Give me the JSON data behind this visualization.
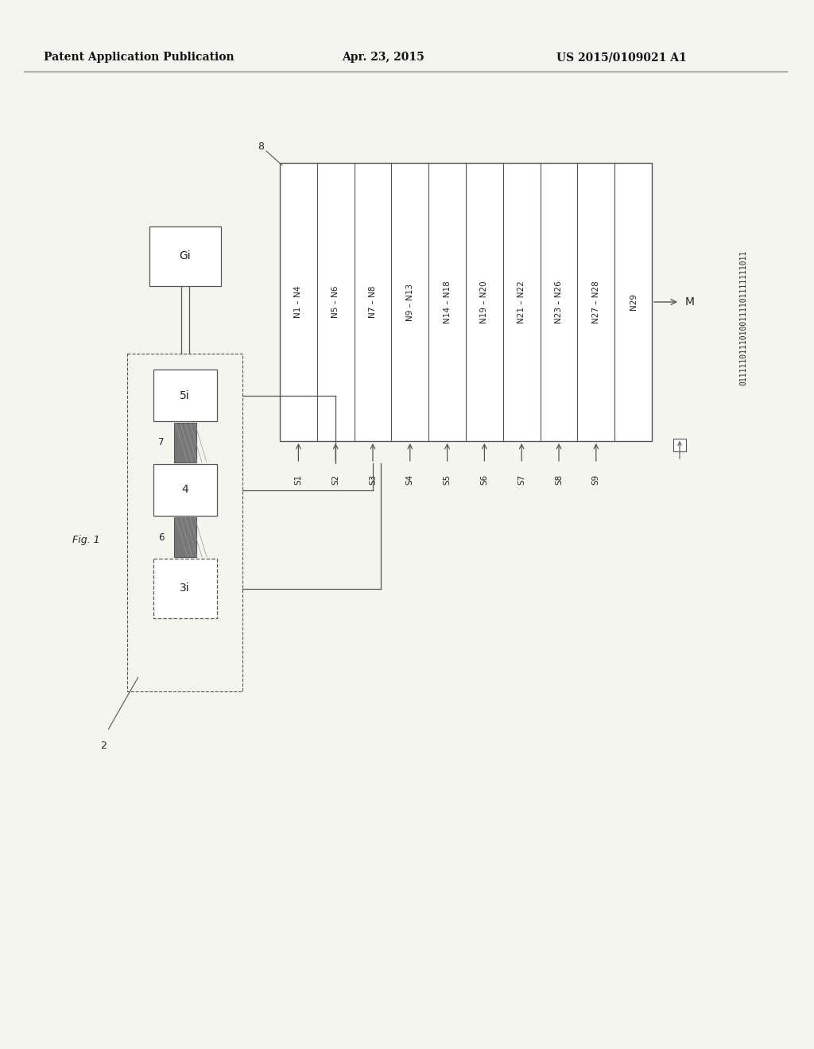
{
  "title_left": "Patent Application Publication",
  "title_center": "Apr. 23, 2015",
  "title_right": "US 2015/0109021 A1",
  "fig_label": "Fig. 1",
  "bg_color": "#f5f5f0",
  "text_color": "#222222",
  "line_color": "#555555",
  "slots": [
    "N1 – N4",
    "N5 – N6",
    "N7 – N8",
    "N9 – N13",
    "N14 – N18",
    "N19 – N20",
    "N21 – N22",
    "N23 – N26",
    "N27 – N28",
    "N29"
  ],
  "slot_labels": [
    "S1",
    "S2",
    "S3",
    "S4",
    "S5",
    "S6",
    "S7",
    "S8",
    "S9"
  ],
  "binary_string": "01111101110100111101111111011",
  "label_8": "8",
  "label_M": "M",
  "label_G": "Gi",
  "label_5": "5i",
  "label_4": "4",
  "label_3": "3i",
  "label_7": "7",
  "label_6": "6",
  "label_2": "2"
}
